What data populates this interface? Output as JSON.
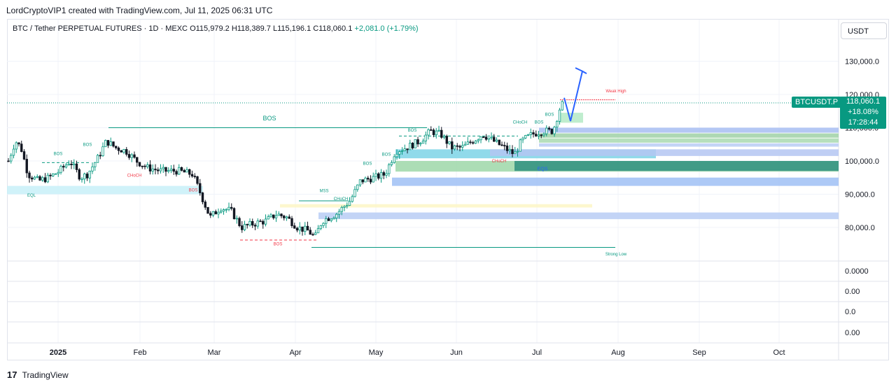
{
  "header": {
    "credit": "LordCryptoVIP1 created with TradingView.com, Jul 11, 2025 06:31 UTC"
  },
  "legend": {
    "symbol": "BTC / Tether PERPETUAL FUTURES · 1D · MEXC",
    "open": "O115,979.2",
    "high": "H118,389.7",
    "low": "L115,196.1",
    "close": "C118,060.1",
    "change": "+2,081.0 (+1.79%)"
  },
  "currency_button": "USDT",
  "price_axis": {
    "labels": [
      "130,000.0",
      "120,000.0",
      "110,000.0",
      "100,000.0",
      "90,000.0",
      "80,000.0"
    ]
  },
  "indicator_axis": {
    "labels": [
      "0.0000",
      "0.00",
      "0.0",
      "0.00"
    ]
  },
  "time_axis": {
    "labels": [
      "2025",
      "Feb",
      "Mar",
      "Apr",
      "May",
      "Jun",
      "Jul",
      "Aug",
      "Sep",
      "Oct"
    ]
  },
  "last_price": {
    "symbol": "BTCUSDT.P",
    "price": "118,060.1",
    "change": "+18.08%",
    "countdown": "17:28:44"
  },
  "annotations": {
    "bos_major": "BOS",
    "bos": "BOS",
    "choch": "CHoCH",
    "mss": "MSS",
    "eql": "EQL",
    "weak_high": "Weak High",
    "strong_low": "Strong Low",
    "eqs": "EQS"
  },
  "brand": {
    "logo": "17",
    "name": "TradingView"
  },
  "colors": {
    "up": "#089981",
    "down": "#131722",
    "bos_line": "#089981",
    "bear_label": "#f23645",
    "arrow": "#2962ff"
  }
}
